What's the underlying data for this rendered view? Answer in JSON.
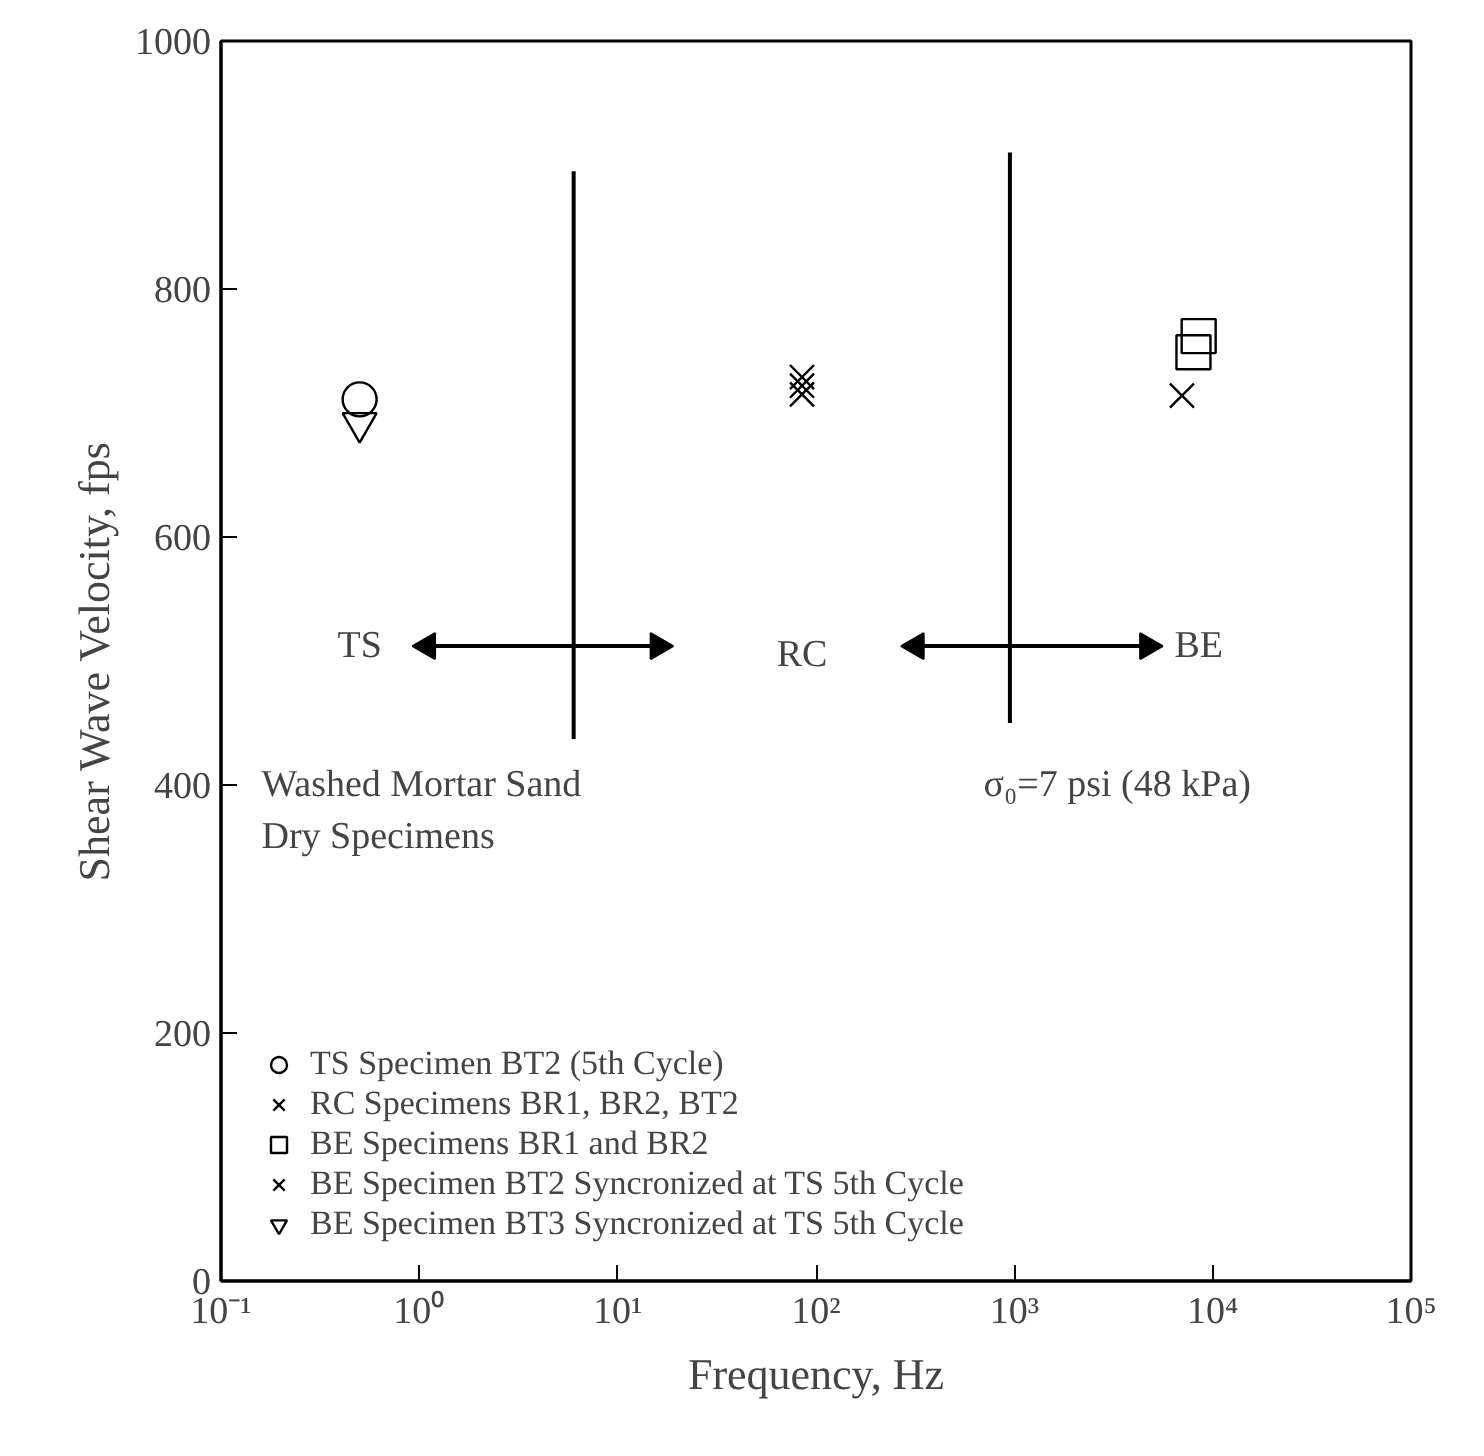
{
  "chart_data": {
    "type": "scatter",
    "xlabel": "Frequency, Hz",
    "ylabel": "Shear Wave Velocity, fps",
    "log": "x",
    "xlim": [
      0.1,
      100000
    ],
    "xticks": [
      {
        "value": 0.1,
        "label": "10⁻¹"
      },
      {
        "value": 1,
        "label": "10⁰"
      },
      {
        "value": 10,
        "label": "10¹"
      },
      {
        "value": 100,
        "label": "10²"
      },
      {
        "value": 1000,
        "label": "10³"
      },
      {
        "value": 10000,
        "label": "10⁴"
      },
      {
        "value": 100000,
        "label": "10⁵"
      }
    ],
    "ylim": [
      0,
      1000
    ],
    "yticks": [
      0,
      200,
      400,
      600,
      800,
      1000
    ],
    "grid": false,
    "legend": "bottom left",
    "series": [
      {
        "name": "TS Specimen BT2 (5th Cycle)",
        "color": "#000000",
        "marker": "circle",
        "x": [
          0.5
        ],
        "values": [
          711
        ]
      },
      {
        "name": "RC Specimens BR1, BR2, BT2",
        "color": "#000000",
        "marker": "cross",
        "x": [
          85,
          85,
          85
        ],
        "values": [
          715,
          722,
          729
        ]
      },
      {
        "name": "BE Specimens BR1 and BR2",
        "color": "#000000",
        "marker": "square",
        "x": [
          8000,
          8500
        ],
        "values": [
          749,
          762
        ]
      },
      {
        "name": "BE Specimen BT2 Syncronized at TS 5th Cycle",
        "color": "#000000",
        "marker": "cross",
        "x": [
          7000
        ],
        "values": [
          714
        ]
      },
      {
        "name": "BE Specimen BT3 Syncronized at TS 5th Cycle",
        "color": "#000000",
        "marker": "triangle_down",
        "x": [
          0.5
        ],
        "values": [
          692
        ]
      },
      {
        "type": "line",
        "color": "#000000",
        "marker": "none",
        "x": [
          6,
          6
        ],
        "values": [
          437,
          895
        ]
      },
      {
        "type": "line",
        "color": "#000000",
        "marker": "none",
        "x": [
          950,
          950
        ],
        "values": [
          450,
          910
        ]
      },
      {
        "type": "line",
        "color": "#000000",
        "marker": "triangle",
        "x": [
          1.1,
          16
        ],
        "values": [
          512,
          512
        ]
      },
      {
        "type": "line",
        "color": "#000000",
        "marker": "triangle",
        "x": [
          320,
          4700
        ],
        "values": [
          512,
          512
        ]
      }
    ],
    "annotations": [
      "TS",
      "RC",
      "BE",
      "Washed Mortar Sand\nDry Specimens",
      "σ₀=7 psi (48 kPa)"
    ]
  }
}
